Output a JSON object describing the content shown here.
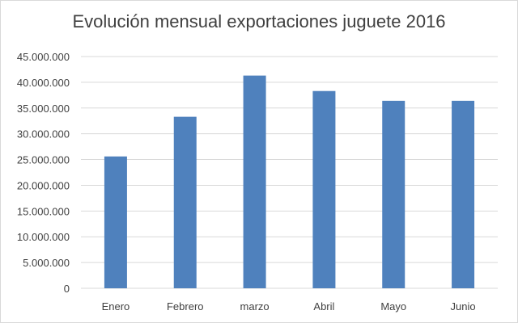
{
  "chart_data": {
    "type": "bar",
    "title": "Evolución mensual exportaciones juguete 2016",
    "xlabel": "",
    "ylabel": "",
    "categories": [
      "Enero",
      "Febrero",
      "marzo",
      "Abril",
      "Mayo",
      "Junio"
    ],
    "values": [
      25600000,
      33300000,
      41300000,
      38300000,
      36400000,
      36400000
    ],
    "ylim": [
      0,
      45000000
    ],
    "yticks": [
      "0",
      "5.000.000",
      "10.000.000",
      "15.000.000",
      "20.000.000",
      "25.000.000",
      "30.000.000",
      "35.000.000",
      "40.000.000",
      "45.000.000"
    ],
    "grid": true,
    "legend": "none",
    "colors": {
      "bar": "#4f81bd",
      "grid": "#d9d9d9",
      "text": "#404040"
    }
  }
}
